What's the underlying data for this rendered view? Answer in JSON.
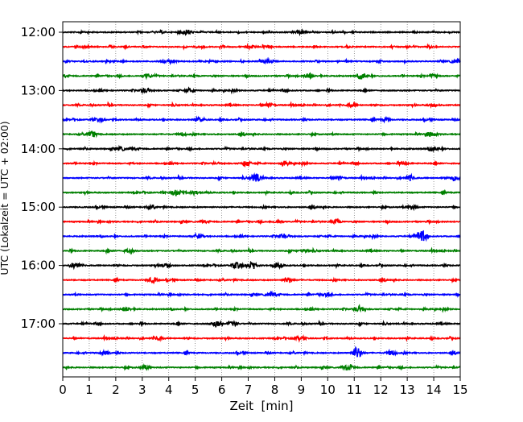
{
  "chart_data": {
    "type": "line",
    "xlabel": "Zeit  [min]",
    "ylabel": "UTC (Lokalzeit = UTC + 02:00)",
    "xlim": [
      0,
      15
    ],
    "x_ticks": [
      0,
      1,
      2,
      3,
      4,
      5,
      6,
      7,
      8,
      9,
      10,
      11,
      12,
      13,
      14,
      15
    ],
    "x_tick_labels": [
      "0",
      "1",
      "2",
      "3",
      "4",
      "5",
      "6",
      "7",
      "8",
      "9",
      "10",
      "11",
      "12",
      "13",
      "14",
      "15"
    ],
    "y_tick_labels": [
      "12:00",
      "13:00",
      "14:00",
      "15:00",
      "16:00",
      "17:00"
    ],
    "y_tick_rows": [
      0,
      4,
      8,
      12,
      16,
      20
    ],
    "grid": "vertical dotted",
    "trace_interval_min": 15,
    "trace_colors": [
      "#000000",
      "#ff0000",
      "#0000ff",
      "#008000"
    ],
    "traces": [
      {
        "start": "12:00",
        "events": [
          [
            4.7,
            3
          ],
          [
            9.0,
            2
          ]
        ]
      },
      {
        "start": "12:15",
        "events": [
          [
            7.1,
            2
          ]
        ]
      },
      {
        "start": "12:30",
        "events": [
          [
            4.1,
            2
          ],
          [
            7.8,
            2
          ],
          [
            14.8,
            2
          ]
        ]
      },
      {
        "start": "12:45",
        "events": [
          [
            3.2,
            2
          ],
          [
            9.3,
            3
          ],
          [
            11.3,
            3
          ],
          [
            14.0,
            2
          ]
        ]
      },
      {
        "start": "13:00",
        "events": [
          [
            3.1,
            2
          ],
          [
            4.8,
            2
          ]
        ]
      },
      {
        "start": "13:15",
        "events": [
          [
            7.8,
            2
          ],
          [
            10.9,
            2
          ],
          [
            14.0,
            2
          ]
        ]
      },
      {
        "start": "13:30",
        "events": [
          [
            1.4,
            2
          ],
          [
            5.2,
            2
          ],
          [
            12.2,
            2
          ]
        ]
      },
      {
        "start": "13:45",
        "events": [
          [
            1.1,
            3
          ],
          [
            4.5,
            2
          ],
          [
            13.9,
            3
          ]
        ]
      },
      {
        "start": "14:00",
        "events": [
          [
            14.0,
            2
          ],
          [
            2.2,
            2
          ]
        ]
      },
      {
        "start": "14:15",
        "events": [
          [
            6.9,
            3
          ],
          [
            8.4,
            2
          ],
          [
            12.9,
            2
          ]
        ]
      },
      {
        "start": "14:30",
        "events": [
          [
            7.3,
            5
          ],
          [
            10.4,
            2
          ],
          [
            13.1,
            3
          ],
          [
            14.8,
            3
          ]
        ]
      },
      {
        "start": "14:45",
        "events": [
          [
            4.3,
            4
          ],
          [
            5.0,
            2
          ]
        ]
      },
      {
        "start": "15:00",
        "events": [
          [
            3.3,
            2
          ],
          [
            13.2,
            2
          ]
        ]
      },
      {
        "start": "15:15",
        "events": [
          [
            8.1,
            2
          ],
          [
            10.3,
            2
          ]
        ]
      },
      {
        "start": "15:30",
        "events": [
          [
            5.1,
            3
          ],
          [
            8.3,
            2
          ],
          [
            13.5,
            7
          ]
        ]
      },
      {
        "start": "15:45",
        "events": [
          [
            2.5,
            2
          ],
          [
            9.1,
            2
          ]
        ]
      },
      {
        "start": "16:00",
        "events": [
          [
            0.5,
            3
          ],
          [
            3.9,
            2
          ],
          [
            6.6,
            4
          ],
          [
            7.1,
            4
          ],
          [
            8.1,
            3
          ]
        ]
      },
      {
        "start": "16:15",
        "events": [
          [
            3.4,
            3
          ],
          [
            8.5,
            3
          ]
        ]
      },
      {
        "start": "16:30",
        "events": [
          [
            7.8,
            2
          ],
          [
            9.9,
            2
          ]
        ]
      },
      {
        "start": "16:45",
        "events": [
          [
            2.4,
            2
          ],
          [
            11.2,
            3
          ]
        ]
      },
      {
        "start": "17:00",
        "events": [
          [
            5.8,
            4
          ],
          [
            6.4,
            3
          ]
        ]
      },
      {
        "start": "17:15",
        "events": [
          [
            3.6,
            2
          ],
          [
            8.9,
            2
          ]
        ]
      },
      {
        "start": "17:30",
        "events": [
          [
            11.1,
            7
          ],
          [
            12.4,
            3
          ],
          [
            1.6,
            2
          ]
        ]
      },
      {
        "start": "17:45",
        "events": [
          [
            10.8,
            3
          ],
          [
            3.1,
            2
          ]
        ]
      }
    ]
  }
}
